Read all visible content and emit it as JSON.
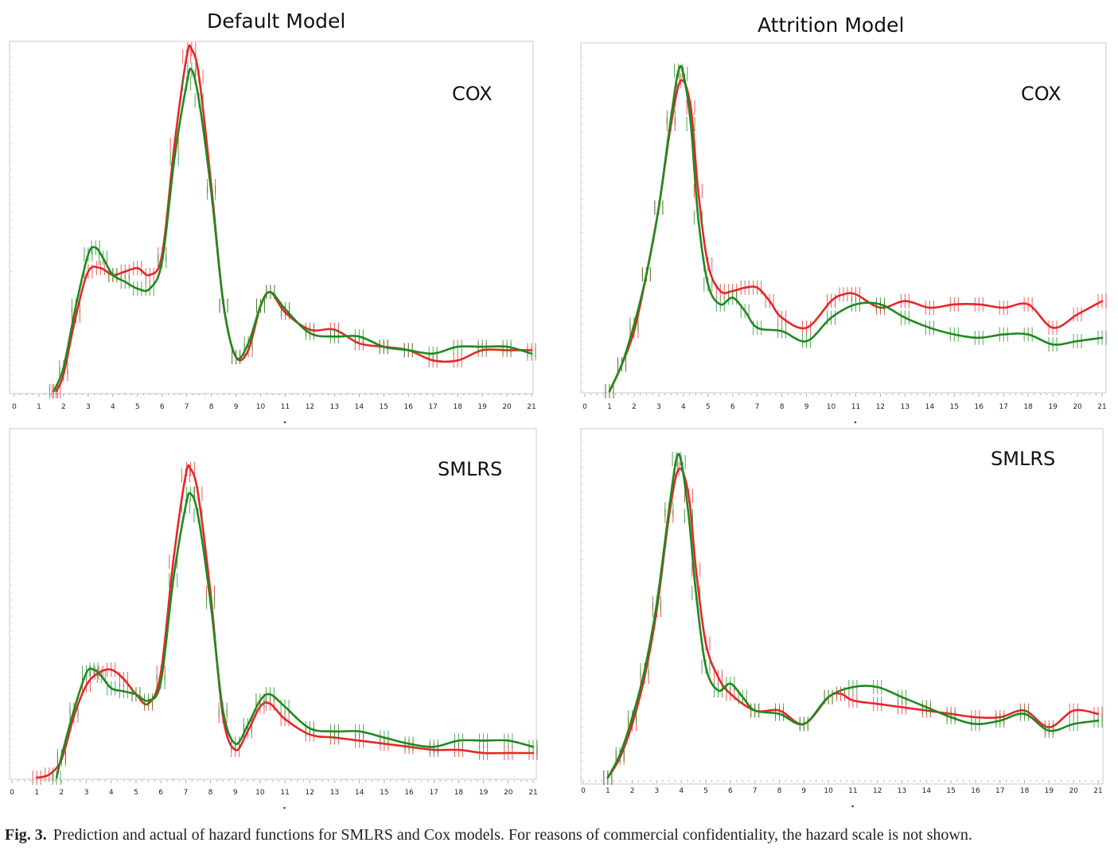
{
  "figure": {
    "col_titles": [
      "Default Model",
      "Attrition Model"
    ],
    "caption_label": "Fig. 3.",
    "caption_text": "Prediction and actual of hazard functions for SMLRS and Cox models. For reasons of commercial confidentiality, the hazard scale is not shown."
  },
  "colors": {
    "predicted_or_actual_a": "#e8262a",
    "predicted_or_actual_b": "#1e8a1e",
    "frame": "#c8c8c8"
  },
  "chart_data": [
    {
      "type": "line",
      "label": "COX",
      "x_ticks": [
        0,
        1,
        2,
        3,
        4,
        5,
        6,
        7,
        8,
        9,
        10,
        11,
        12,
        13,
        14,
        15,
        16,
        17,
        18,
        19,
        20,
        21
      ],
      "xlim": [
        0,
        21
      ],
      "ylim": [
        0,
        100
      ],
      "y_scale_shown": false,
      "grid": false,
      "series": [
        {
          "color": "#e8262a",
          "x": [
            1.7,
            2.0,
            2.5,
            3.0,
            3.5,
            4.0,
            4.5,
            5.0,
            5.5,
            6.0,
            6.5,
            7.0,
            7.2,
            7.5,
            8.0,
            8.5,
            9.0,
            9.5,
            10.0,
            10.4,
            11.0,
            12.0,
            13.0,
            14.0,
            15.0,
            16.0,
            17.0,
            18.0,
            19.0,
            20.0,
            21.0
          ],
          "y": [
            0,
            5,
            22,
            35,
            36,
            34,
            35,
            36,
            34,
            40,
            72,
            98,
            100,
            92,
            60,
            25,
            10,
            12,
            25,
            29,
            23,
            18,
            18,
            14,
            13,
            12,
            9,
            9,
            12,
            12,
            12
          ]
        },
        {
          "color": "#1e8a1e",
          "x": [
            1.6,
            2.0,
            2.5,
            3.0,
            3.3,
            3.6,
            4.0,
            4.5,
            5.0,
            5.5,
            6.0,
            6.5,
            7.0,
            7.2,
            7.5,
            8.0,
            8.5,
            9.0,
            9.5,
            10.0,
            10.4,
            11.0,
            12.0,
            13.0,
            14.0,
            15.0,
            16.0,
            17.0,
            18.0,
            19.0,
            20.0,
            21.0
          ],
          "y": [
            0,
            7,
            25,
            40,
            42,
            39,
            34,
            32,
            30,
            30,
            38,
            68,
            90,
            94,
            85,
            58,
            25,
            10,
            14,
            25,
            29,
            24,
            17,
            16,
            16,
            13,
            12,
            11,
            13,
            13,
            13,
            11
          ]
        }
      ]
    },
    {
      "type": "line",
      "label": "COX",
      "x_ticks": [
        0,
        1,
        2,
        3,
        4,
        5,
        6,
        7,
        8,
        9,
        10,
        11,
        12,
        13,
        14,
        15,
        16,
        17,
        18,
        19,
        20,
        21
      ],
      "xlim": [
        0,
        21
      ],
      "ylim": [
        0,
        100
      ],
      "y_scale_shown": false,
      "grid": false,
      "series": [
        {
          "color": "#e8262a",
          "x": [
            1.0,
            1.5,
            2.0,
            2.5,
            3.0,
            3.5,
            3.9,
            4.3,
            4.6,
            5.0,
            5.5,
            6.0,
            6.5,
            7.0,
            7.5,
            8.0,
            9.0,
            10.0,
            10.5,
            11.0,
            12.0,
            13.0,
            14.0,
            15.0,
            16.0,
            17.0,
            18.0,
            19.0,
            20.0,
            21.0
          ],
          "y": [
            0,
            8,
            18,
            35,
            55,
            80,
            93,
            85,
            60,
            38,
            30,
            30,
            31,
            31,
            27,
            22,
            19,
            27,
            29,
            29,
            25,
            27,
            25,
            26,
            26,
            25,
            26,
            19,
            23,
            27
          ]
        },
        {
          "color": "#1e8a1e",
          "x": [
            1.0,
            1.5,
            2.0,
            2.5,
            3.0,
            3.5,
            3.8,
            4.0,
            4.3,
            4.6,
            5.0,
            5.5,
            6.0,
            6.5,
            7.0,
            8.0,
            9.0,
            10.0,
            11.0,
            12.0,
            13.0,
            14.0,
            15.0,
            16.0,
            17.0,
            18.0,
            19.0,
            20.0,
            21.0
          ],
          "y": [
            0,
            8,
            20,
            35,
            55,
            82,
            96,
            95,
            80,
            52,
            32,
            26,
            28,
            24,
            19,
            18,
            15,
            22,
            26,
            26,
            22,
            19,
            17,
            16,
            17,
            17,
            14,
            15,
            16
          ]
        }
      ]
    },
    {
      "type": "line",
      "label": "SMLRS",
      "x_ticks": [
        0,
        1,
        2,
        3,
        4,
        5,
        6,
        7,
        8,
        9,
        10,
        11,
        12,
        13,
        14,
        15,
        16,
        17,
        18,
        19,
        20,
        21
      ],
      "xlim": [
        0,
        21
      ],
      "ylim": [
        0,
        100
      ],
      "y_scale_shown": false,
      "grid": false,
      "series": [
        {
          "color": "#e8262a",
          "x": [
            1.0,
            1.5,
            2.0,
            2.5,
            3.0,
            3.5,
            4.0,
            4.5,
            5.0,
            5.5,
            6.0,
            6.5,
            7.0,
            7.2,
            7.5,
            8.0,
            8.5,
            9.0,
            9.5,
            10.0,
            10.4,
            11.0,
            12.0,
            13.0,
            14.0,
            15.0,
            16.0,
            17.0,
            18.0,
            19.0,
            20.0,
            21.0
          ],
          "y": [
            0,
            1,
            6,
            20,
            30,
            34,
            35,
            32,
            27,
            24,
            34,
            70,
            98,
            100,
            92,
            60,
            20,
            9,
            15,
            23,
            24,
            19,
            14,
            13,
            12,
            11,
            10,
            9,
            9,
            8,
            8,
            8
          ]
        },
        {
          "color": "#1e8a1e",
          "x": [
            1.8,
            2.0,
            2.5,
            3.0,
            3.3,
            3.6,
            4.0,
            4.5,
            5.0,
            5.5,
            6.0,
            6.5,
            7.0,
            7.2,
            7.5,
            8.0,
            8.5,
            9.0,
            9.5,
            10.0,
            10.4,
            11.0,
            12.0,
            13.0,
            14.0,
            15.0,
            16.0,
            17.0,
            18.0,
            19.0,
            20.0,
            21.0
          ],
          "y": [
            0,
            7,
            22,
            34,
            35,
            33,
            29,
            28,
            27,
            25,
            31,
            64,
            88,
            92,
            85,
            57,
            22,
            11,
            17,
            25,
            27,
            23,
            16,
            15,
            15,
            13,
            11,
            10,
            12,
            12,
            12,
            10
          ]
        }
      ]
    },
    {
      "type": "line",
      "label": "SMLRS",
      "x_ticks": [
        0,
        1,
        2,
        3,
        4,
        5,
        6,
        7,
        8,
        9,
        10,
        11,
        12,
        13,
        14,
        15,
        16,
        17,
        18,
        19,
        20,
        21
      ],
      "xlim": [
        0,
        21
      ],
      "ylim": [
        0,
        100
      ],
      "y_scale_shown": false,
      "grid": false,
      "series": [
        {
          "color": "#e8262a",
          "x": [
            1.0,
            1.5,
            2.0,
            2.5,
            3.0,
            3.5,
            3.9,
            4.3,
            4.6,
            5.0,
            5.5,
            6.0,
            7.0,
            8.0,
            9.0,
            10.0,
            10.5,
            11.0,
            12.0,
            13.0,
            14.0,
            15.0,
            16.0,
            17.0,
            18.0,
            19.0,
            20.0,
            21.0
          ],
          "y": [
            0,
            6,
            16,
            30,
            50,
            78,
            92,
            84,
            62,
            40,
            30,
            25,
            20,
            20,
            16,
            24,
            25,
            23,
            22,
            21,
            20,
            19,
            18,
            18,
            20,
            15,
            20,
            19
          ]
        },
        {
          "color": "#1e8a1e",
          "x": [
            1.0,
            1.5,
            2.0,
            2.5,
            3.0,
            3.5,
            3.8,
            4.0,
            4.3,
            4.6,
            5.0,
            5.5,
            6.0,
            6.5,
            7.0,
            8.0,
            9.0,
            10.0,
            11.0,
            12.0,
            13.0,
            14.0,
            15.0,
            16.0,
            17.0,
            18.0,
            19.0,
            20.0,
            21.0
          ],
          "y": [
            0,
            7,
            18,
            32,
            52,
            80,
            95,
            94,
            78,
            55,
            33,
            26,
            28,
            24,
            20,
            19,
            16,
            24,
            27,
            27,
            24,
            21,
            18,
            16,
            17,
            19,
            14,
            16,
            17
          ]
        }
      ]
    }
  ]
}
